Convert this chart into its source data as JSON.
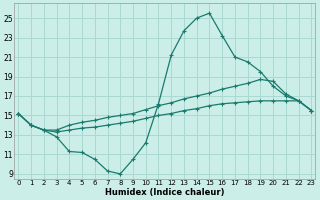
{
  "xlabel": "Humidex (Indice chaleur)",
  "background_color": "#cceee8",
  "grid_color": "#aad8d0",
  "line_color": "#1a7a6e",
  "x_ticks": [
    0,
    1,
    2,
    3,
    4,
    5,
    6,
    7,
    8,
    9,
    10,
    11,
    12,
    13,
    14,
    15,
    16,
    17,
    18,
    19,
    20,
    21,
    22,
    23
  ],
  "y_ticks": [
    9,
    11,
    13,
    15,
    17,
    19,
    21,
    23,
    25
  ],
  "xlim": [
    -0.3,
    23.3
  ],
  "ylim": [
    8.5,
    26.5
  ],
  "line1_x": [
    0,
    1,
    2,
    3,
    4,
    5,
    6,
    7,
    8,
    9,
    10,
    11,
    12,
    13,
    14,
    15,
    16,
    17,
    18,
    19,
    20,
    21,
    22,
    23
  ],
  "line1_y": [
    15.2,
    14.0,
    13.5,
    13.5,
    14.0,
    14.3,
    14.5,
    14.8,
    15.0,
    15.2,
    15.6,
    16.0,
    16.3,
    16.7,
    17.0,
    17.3,
    17.7,
    18.0,
    18.3,
    18.7,
    18.5,
    17.2,
    16.5,
    15.5
  ],
  "line2_x": [
    0,
    1,
    2,
    3,
    4,
    5,
    6,
    7,
    8,
    9,
    10,
    11,
    12,
    13,
    14,
    15,
    16,
    17,
    18,
    19,
    20,
    21,
    22,
    23
  ],
  "line2_y": [
    15.2,
    14.0,
    13.5,
    13.3,
    13.5,
    13.7,
    13.8,
    14.0,
    14.2,
    14.4,
    14.7,
    15.0,
    15.2,
    15.5,
    15.7,
    16.0,
    16.2,
    16.3,
    16.4,
    16.5,
    16.5,
    16.5,
    16.5,
    15.5
  ],
  "line3_x": [
    0,
    1,
    2,
    3,
    4,
    5,
    6,
    7,
    8,
    9,
    10,
    11,
    12,
    13,
    14,
    15,
    16,
    17,
    18,
    19,
    20,
    21,
    22,
    23
  ],
  "line3_y": [
    15.2,
    14.0,
    13.5,
    12.8,
    11.3,
    11.2,
    10.5,
    9.3,
    9.0,
    10.5,
    12.2,
    16.2,
    21.2,
    23.7,
    25.0,
    25.5,
    23.2,
    21.0,
    20.5,
    19.5,
    18.0,
    17.0,
    16.5,
    15.5
  ]
}
